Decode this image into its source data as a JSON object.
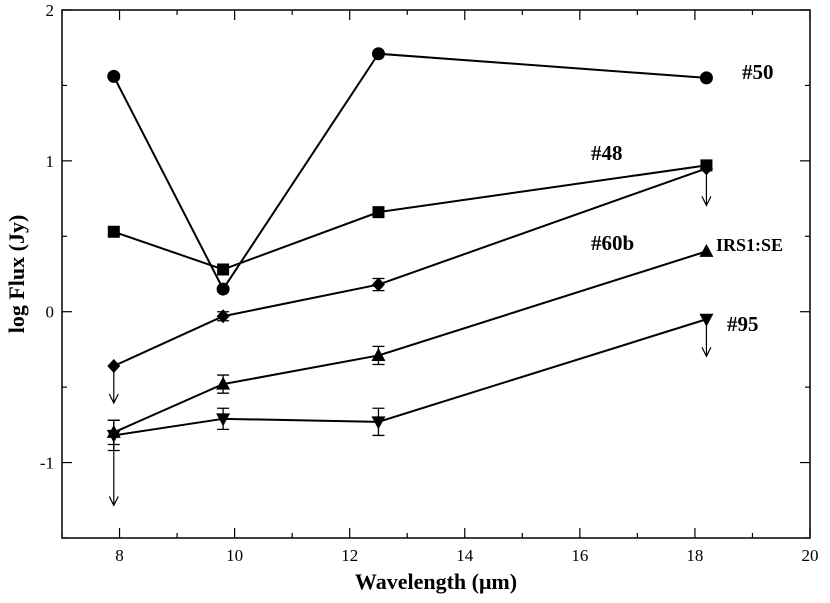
{
  "chart_data": {
    "type": "line",
    "xlabel": "Wavelength (μm)",
    "ylabel": "log Flux (Jy)",
    "xlim": [
      7,
      20
    ],
    "ylim": [
      -1.5,
      2
    ],
    "xticks": [
      8,
      10,
      12,
      14,
      16,
      18,
      20
    ],
    "yticks": [
      -1,
      0,
      1,
      2
    ],
    "grid": false,
    "series": [
      {
        "name": "#50",
        "marker": "circle",
        "points": [
          {
            "x": 7.9,
            "y": 1.56
          },
          {
            "x": 9.8,
            "y": 0.15
          },
          {
            "x": 12.5,
            "y": 1.71
          },
          {
            "x": 18.2,
            "y": 1.55
          }
        ]
      },
      {
        "name": "#48",
        "marker": "square",
        "points": [
          {
            "x": 7.9,
            "y": 0.53
          },
          {
            "x": 9.8,
            "y": 0.28
          },
          {
            "x": 12.5,
            "y": 0.66
          },
          {
            "x": 18.2,
            "y": 0.97,
            "err": 0.03
          }
        ]
      },
      {
        "name": "#60b",
        "marker": "diamond",
        "points": [
          {
            "x": 7.9,
            "y": -0.36,
            "upper_limit": true
          },
          {
            "x": 9.8,
            "y": -0.03,
            "err": 0.03
          },
          {
            "x": 12.5,
            "y": 0.18,
            "err": 0.04
          },
          {
            "x": 18.2,
            "y": 0.95,
            "upper_limit": true
          }
        ]
      },
      {
        "name": "IRS1:SE",
        "marker": "triangle-up",
        "points": [
          {
            "x": 7.9,
            "y": -0.8,
            "err": 0.08
          },
          {
            "x": 9.8,
            "y": -0.48,
            "err": 0.06
          },
          {
            "x": 12.5,
            "y": -0.29,
            "err": 0.06
          },
          {
            "x": 18.2,
            "y": 0.4
          }
        ]
      },
      {
        "name": "#95",
        "marker": "triangle-down",
        "points": [
          {
            "x": 7.9,
            "y": -0.82,
            "err": 0.1,
            "upper_limit": true
          },
          {
            "x": 9.8,
            "y": -0.71,
            "err": 0.07
          },
          {
            "x": 12.5,
            "y": -0.73,
            "err": 0.09
          },
          {
            "x": 18.2,
            "y": -0.05,
            "upper_limit": true
          }
        ]
      }
    ]
  }
}
